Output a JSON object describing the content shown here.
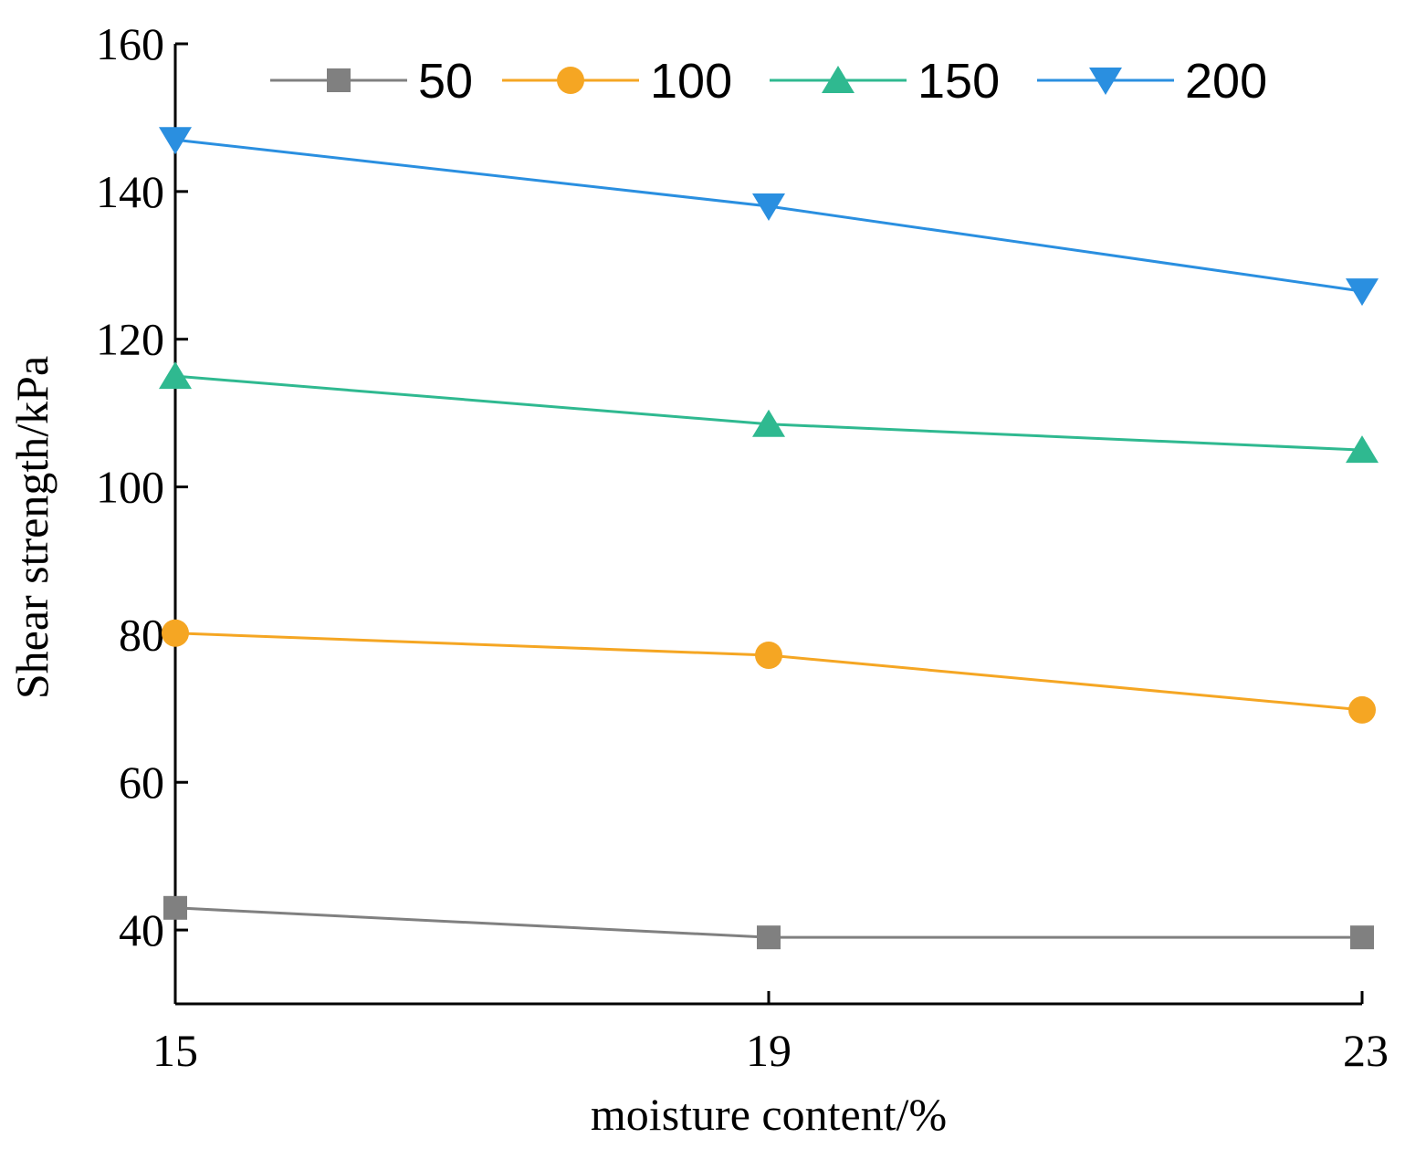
{
  "chart_data": {
    "type": "line",
    "title": "",
    "xlabel": "moisture content/%",
    "ylabel": "Shear strength/kPa",
    "categories": [
      "15",
      "19",
      "23"
    ],
    "x": [
      15,
      19,
      23
    ],
    "xlim": [
      15,
      23
    ],
    "ylim": [
      30,
      160
    ],
    "yticks": [
      40,
      60,
      80,
      100,
      120,
      140,
      160
    ],
    "grid": false,
    "legend_position": "top",
    "series": [
      {
        "name": "50",
        "marker": "square",
        "color": "#808080",
        "values": [
          43,
          39,
          39
        ]
      },
      {
        "name": "100",
        "marker": "circle",
        "color": "#F5A623",
        "values": [
          80.2,
          77.2,
          69.8
        ]
      },
      {
        "name": "150",
        "marker": "triangle-up",
        "color": "#2FB990",
        "values": [
          115,
          108.5,
          105
        ]
      },
      {
        "name": "200",
        "marker": "triangle-down",
        "color": "#2A8FE0",
        "values": [
          147,
          138,
          126.5
        ]
      }
    ]
  }
}
